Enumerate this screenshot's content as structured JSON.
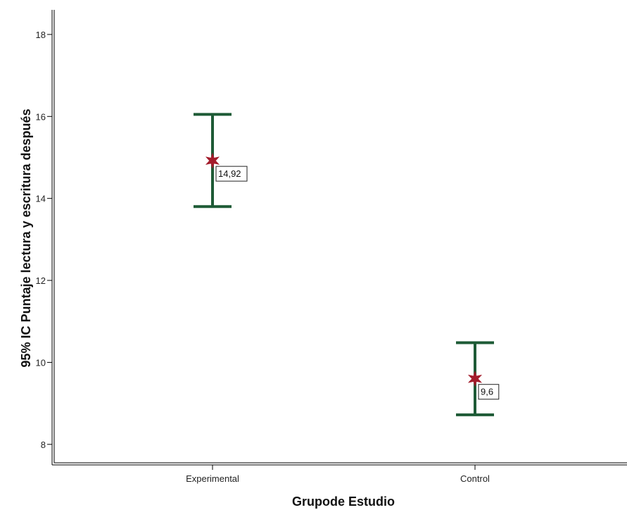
{
  "chart_data": {
    "type": "errorbar",
    "title": "",
    "xlabel": "Grupode Estudio",
    "ylabel": "95% IC Puntaje lectura y escritura después",
    "categories": [
      "Experimental",
      "Control"
    ],
    "series": [
      {
        "mean": [
          14.92,
          9.6
        ],
        "ci_upper": [
          16.05,
          10.48
        ],
        "ci_lower": [
          13.8,
          8.72
        ],
        "labels": [
          "14,92",
          "9,6"
        ]
      }
    ],
    "ylim": [
      7.55,
      18.6
    ],
    "yticks": [
      8,
      10,
      12,
      14,
      16,
      18
    ],
    "grid": false,
    "colors": {
      "errorbar": "#1e5b36",
      "marker": "#a31c2b",
      "axis": "#000000"
    }
  }
}
